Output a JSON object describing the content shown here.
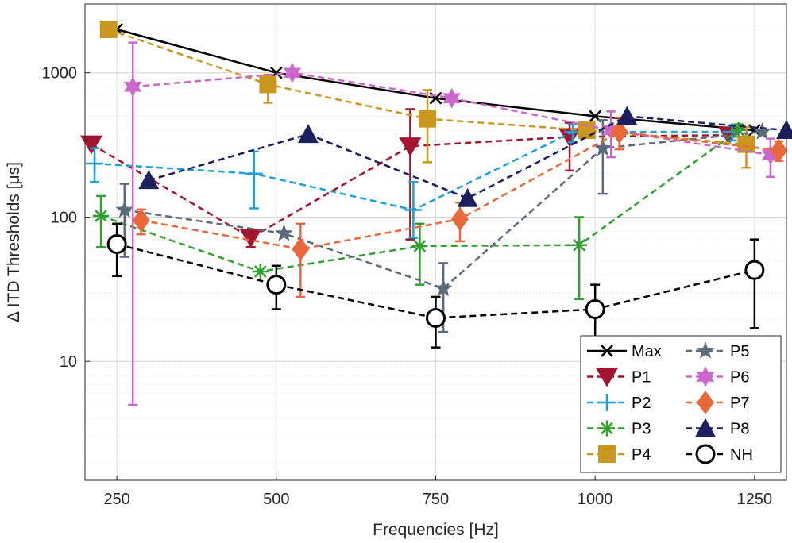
{
  "chart_data": {
    "type": "line",
    "xlabel": "Frequencies [Hz]",
    "ylabel": "Δ ITD Thresholds [μs]",
    "yscale": "log",
    "xlim": [
      200,
      1300
    ],
    "ylim": [
      1.5,
      3000
    ],
    "grid": true,
    "legend_position": "bottom-right",
    "legend_columns": 2,
    "xticks": [
      250,
      500,
      750,
      1000,
      1250
    ],
    "yticks": [
      10,
      100,
      1000
    ],
    "series": [
      {
        "name": "Max",
        "color": "#000000",
        "marker": "x",
        "dash": "solid",
        "x": [
          250,
          500,
          750,
          1000,
          1250
        ],
        "y": [
          2000,
          1000,
          667,
          500,
          400
        ],
        "err": null
      },
      {
        "name": "P1",
        "color": "#A2142F",
        "marker": "triangle-down",
        "dash": "dashed",
        "x": [
          210,
          460,
          710,
          960,
          1210
        ],
        "y": [
          320,
          72,
          310,
          360,
          370
        ],
        "err": [
          null,
          [
            62,
            82
          ],
          [
            70,
            560
          ],
          [
            210,
            450
          ],
          null
        ]
      },
      {
        "name": "P2",
        "color": "#1AA1D6",
        "marker": "plus",
        "dash": "dashed",
        "x": [
          215,
          465,
          715,
          965,
          1215
        ],
        "y": [
          235,
          200,
          112,
          390,
          390
        ],
        "err": [
          [
            175,
            300
          ],
          [
            115,
            285
          ],
          [
            72,
            175
          ],
          [
            330,
            440
          ],
          [
            340,
            430
          ]
        ]
      },
      {
        "name": "P3",
        "color": "#2FA12F",
        "marker": "asterisk",
        "dash": "dashed",
        "x": [
          225,
          475,
          725,
          975,
          1225
        ],
        "y": [
          102,
          42,
          63,
          64,
          400
        ],
        "err": [
          [
            62,
            140
          ],
          null,
          [
            34,
            90
          ],
          [
            27,
            100
          ],
          [
            360,
            440
          ]
        ]
      },
      {
        "name": "P4",
        "color": "#C9971F",
        "marker": "square",
        "dash": "dashed",
        "x": [
          237,
          487,
          737,
          987,
          1237
        ],
        "y": [
          2000,
          830,
          480,
          400,
          320
        ],
        "err": [
          null,
          [
            620,
            970
          ],
          [
            240,
            760
          ],
          null,
          [
            220,
            420
          ]
        ]
      },
      {
        "name": "P5",
        "color": "#5B6B7A",
        "marker": "star5",
        "dash": "dashed",
        "x": [
          262,
          512,
          762,
          1012,
          1262
        ],
        "y": [
          112,
          77,
          32,
          300,
          390
        ],
        "err": [
          [
            53,
            170
          ],
          null,
          [
            16,
            48
          ],
          [
            145,
            470
          ],
          null
        ]
      },
      {
        "name": "P6",
        "color": "#CC66CC",
        "marker": "star6",
        "dash": "dashed",
        "x": [
          275,
          525,
          775,
          1025,
          1275
        ],
        "y": [
          800,
          1000,
          667,
          400,
          270
        ],
        "err": [
          [
            5,
            1620
          ],
          null,
          null,
          [
            260,
            540
          ],
          [
            190,
            350
          ]
        ]
      },
      {
        "name": "P7",
        "color": "#E8683A",
        "marker": "diamond",
        "dash": "dashed",
        "x": [
          288,
          538,
          788,
          1038,
          1288
        ],
        "y": [
          95,
          60,
          97,
          390,
          290
        ],
        "err": [
          [
            76,
            113
          ],
          [
            28,
            90
          ],
          [
            68,
            126
          ],
          [
            295,
            490
          ],
          [
            245,
            335
          ]
        ]
      },
      {
        "name": "P8",
        "color": "#1B1F5E",
        "marker": "triangle-up",
        "dash": "dashed",
        "x": [
          300,
          550,
          800,
          1050,
          1300
        ],
        "y": [
          180,
          375,
          135,
          500,
          400
        ],
        "err": null
      },
      {
        "name": "NH",
        "color": "#000000",
        "marker": "circle",
        "dash": "dashed",
        "x": [
          250,
          500,
          750,
          1000,
          1250
        ],
        "y": [
          65,
          34,
          20,
          23,
          43
        ],
        "err": [
          [
            39,
            90
          ],
          [
            23,
            46
          ],
          [
            12.5,
            28
          ],
          [
            12.5,
            34
          ],
          [
            17,
            70
          ]
        ]
      }
    ]
  }
}
